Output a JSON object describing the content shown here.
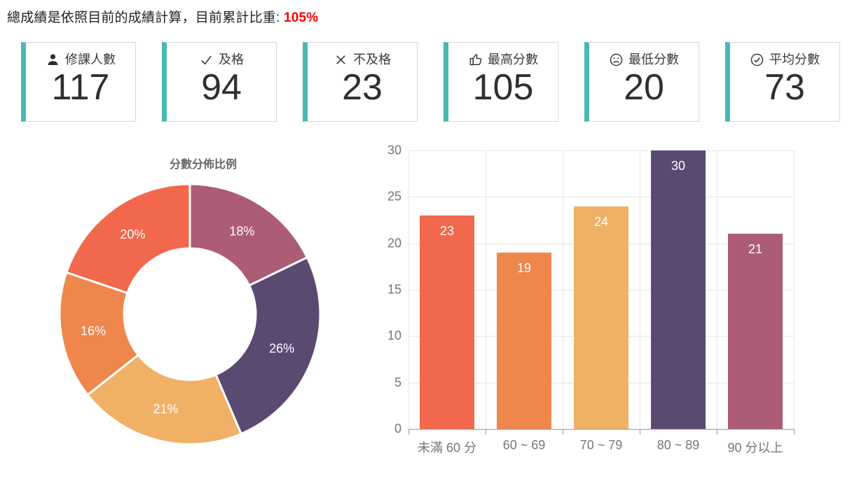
{
  "header": {
    "text": "總成績是依照目前的成績計算，目前累計比重: ",
    "highlight": "105%"
  },
  "cards": [
    {
      "icon": "person-icon",
      "label": "修課人數",
      "value": "117"
    },
    {
      "icon": "check-icon",
      "label": "及格",
      "value": "94"
    },
    {
      "icon": "x-icon",
      "label": "不及格",
      "value": "23"
    },
    {
      "icon": "thumbs-up-icon",
      "label": "最高分數",
      "value": "105"
    },
    {
      "icon": "sad-face-icon",
      "label": "最低分數",
      "value": "20"
    },
    {
      "icon": "check-circle-icon",
      "label": "平均分數",
      "value": "73"
    }
  ],
  "colors": {
    "accent_teal": "#48b8b0",
    "highlight_red": "#ff0000",
    "red_orange": "#f2684c",
    "orange": "#ef874d",
    "amber": "#f0b166",
    "purple": "#5a4a72",
    "mauve": "#ac5c75"
  },
  "chart_data": [
    {
      "type": "pie",
      "title": "分數分佈比例",
      "donut": true,
      "start_angle": "top",
      "direction": "clockwise",
      "slices": [
        {
          "label": "18%",
          "pct": 18,
          "color": "#ac5c75"
        },
        {
          "label": "26%",
          "pct": 26,
          "color": "#5a4a72"
        },
        {
          "label": "21%",
          "pct": 21,
          "color": "#f0b166"
        },
        {
          "label": "16%",
          "pct": 16,
          "color": "#ef874d"
        },
        {
          "label": "20%",
          "pct": 20,
          "color": "#f2684c"
        }
      ]
    },
    {
      "type": "bar",
      "categories": [
        "未滿 60 分",
        "60 ~ 69",
        "70 ~ 79",
        "80 ~ 89",
        "90 分以上"
      ],
      "values": [
        23,
        19,
        24,
        30,
        21
      ],
      "value_labels": [
        "23",
        "19",
        "24",
        "30",
        "21"
      ],
      "bar_colors": [
        "#f2684c",
        "#ef874d",
        "#f0b166",
        "#5a4a72",
        "#ac5c75"
      ],
      "ylim": [
        0,
        30
      ],
      "ytick_step": 5,
      "yticks": [
        0,
        5,
        10,
        15,
        20,
        25,
        30
      ],
      "grid": true,
      "legend": "none",
      "xlabel": "",
      "ylabel": ""
    }
  ]
}
